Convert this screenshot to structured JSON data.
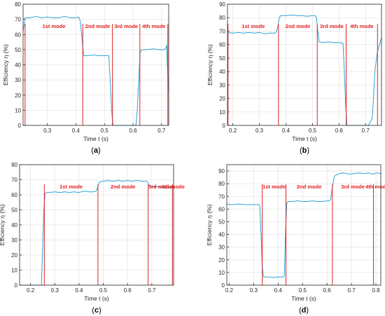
{
  "figure": {
    "label_format": "({label})"
  },
  "colors": {
    "curve": "#2ca3d6",
    "mode_line": "#e02020",
    "mode_text": "#e02020",
    "axis": "#262626",
    "grid": "#e6e6e6"
  },
  "chart_data": [
    {
      "type": "line",
      "panel_label": "a",
      "xlabel": "Time t (s)",
      "ylabel": "Efficiency η (%)",
      "xlim": [
        0.215,
        0.725
      ],
      "ylim": [
        0,
        80
      ],
      "xticks": [
        0.3,
        0.4,
        0.5,
        0.6,
        0.7
      ],
      "yticks": [
        0,
        10,
        20,
        30,
        40,
        50,
        60,
        70,
        80
      ],
      "grid": true,
      "mode_boundaries": [
        0.222,
        0.424,
        0.528,
        0.624,
        0.722
      ],
      "mode_labels": [
        "1st mode",
        "2nd mode",
        "3rd mode",
        "4th mode"
      ],
      "series": [
        {
          "x": [
            0.215,
            0.222,
            0.24,
            0.26,
            0.28,
            0.3,
            0.32,
            0.34,
            0.36,
            0.38,
            0.4,
            0.41,
            0.415,
            0.42,
            0.425,
            0.428,
            0.44,
            0.46,
            0.48,
            0.5,
            0.515,
            0.52,
            0.525,
            0.53,
            0.55,
            0.57,
            0.59,
            0.61,
            0.615,
            0.62,
            0.625,
            0.63,
            0.65,
            0.67,
            0.69,
            0.71,
            0.715,
            0.718,
            0.72,
            0.725
          ],
          "y": [
            62,
            71,
            71,
            72,
            71,
            71.5,
            71,
            71,
            72,
            71,
            71,
            71.5,
            69,
            60,
            50,
            46,
            46,
            46.5,
            46,
            46,
            46,
            30,
            10,
            0,
            0,
            0,
            0,
            0,
            10,
            30,
            48,
            50,
            50,
            50.5,
            50,
            50,
            51,
            53,
            40,
            22
          ]
        }
      ]
    },
    {
      "type": "line",
      "panel_label": "b",
      "xlabel": "Time t (s)",
      "ylabel": "Efficiency η (%)",
      "xlim": [
        0.18,
        0.76
      ],
      "ylim": [
        0,
        90
      ],
      "xticks": [
        0.2,
        0.3,
        0.4,
        0.5,
        0.6,
        0.7
      ],
      "yticks": [
        0,
        10,
        20,
        30,
        40,
        50,
        60,
        70,
        80,
        90
      ],
      "grid": true,
      "mode_boundaries": [
        0.182,
        0.372,
        0.518,
        0.627,
        0.745
      ],
      "mode_labels": [
        "1st mode",
        "2nd mode",
        "3rd mode",
        "4th mode"
      ],
      "series": [
        {
          "x": [
            0.18,
            0.2,
            0.22,
            0.24,
            0.26,
            0.28,
            0.3,
            0.32,
            0.34,
            0.36,
            0.365,
            0.37,
            0.375,
            0.38,
            0.4,
            0.42,
            0.44,
            0.46,
            0.48,
            0.5,
            0.51,
            0.515,
            0.52,
            0.525,
            0.54,
            0.56,
            0.58,
            0.6,
            0.615,
            0.62,
            0.625,
            0.63,
            0.65,
            0.67,
            0.69,
            0.71,
            0.725,
            0.73,
            0.735,
            0.745,
            0.76
          ],
          "y": [
            69,
            68.5,
            69,
            68.5,
            69,
            68.5,
            69,
            68,
            68.5,
            68.5,
            70,
            74,
            80,
            81.5,
            81.5,
            82,
            81.5,
            81.5,
            81,
            81.5,
            81.5,
            80,
            70,
            62,
            61.5,
            62,
            61.5,
            61.5,
            61,
            40,
            15,
            0,
            0,
            0,
            0,
            0,
            5,
            20,
            40,
            55,
            65
          ]
        }
      ]
    },
    {
      "type": "line",
      "panel_label": "c",
      "xlabel": "Time t (s)",
      "ylabel": "Efficiency η (%)",
      "xlim": [
        0.155,
        0.79
      ],
      "ylim": [
        0,
        80
      ],
      "xticks": [
        0.2,
        0.3,
        0.4,
        0.5,
        0.6,
        0.7
      ],
      "yticks": [
        0,
        10,
        20,
        30,
        40,
        50,
        60,
        70,
        80
      ],
      "grid": true,
      "mode_boundaries": [
        0.257,
        0.478,
        0.685,
        0.785
      ],
      "mode_labels": [
        "1st mode",
        "2nd mode",
        "3rd mode",
        "4th mode"
      ],
      "series": [
        {
          "x": [
            0.155,
            0.18,
            0.2,
            0.22,
            0.24,
            0.245,
            0.25,
            0.255,
            0.26,
            0.265,
            0.28,
            0.3,
            0.32,
            0.34,
            0.36,
            0.38,
            0.4,
            0.42,
            0.44,
            0.46,
            0.47,
            0.475,
            0.48,
            0.485,
            0.5,
            0.52,
            0.54,
            0.56,
            0.58,
            0.6,
            0.62,
            0.64,
            0.66,
            0.68,
            0.685,
            0.69,
            0.7,
            0.72,
            0.74,
            0.76,
            0.78,
            0.79
          ],
          "y": [
            0,
            0,
            0,
            0,
            0,
            0,
            25,
            50,
            61,
            61.5,
            61.5,
            62,
            61.5,
            62,
            61.5,
            62,
            61.5,
            62.5,
            62,
            62,
            62.5,
            64,
            67,
            68.5,
            69,
            69.5,
            69,
            69.5,
            69,
            69.5,
            69,
            69.5,
            69,
            69,
            68,
            66,
            65,
            65.5,
            65,
            64.5,
            65,
            66
          ]
        }
      ]
    },
    {
      "type": "line",
      "panel_label": "d",
      "xlabel": "Time t (s)",
      "ylabel": "Efficiency η (%)",
      "xlim": [
        0.19,
        0.82
      ],
      "ylim": [
        0,
        95
      ],
      "xticks": [
        0.2,
        0.3,
        0.4,
        0.5,
        0.6,
        0.7,
        0.8
      ],
      "yticks": [
        0,
        10,
        20,
        30,
        40,
        50,
        60,
        70,
        80,
        90
      ],
      "grid": true,
      "mode_boundaries": [
        0.335,
        0.432,
        0.622,
        0.79
      ],
      "mode_labels": [
        "1st mode",
        "2nd mode",
        "3rd mode",
        "4th mode"
      ],
      "series": [
        {
          "x": [
            0.19,
            0.2,
            0.22,
            0.24,
            0.26,
            0.28,
            0.3,
            0.32,
            0.325,
            0.33,
            0.335,
            0.34,
            0.36,
            0.38,
            0.4,
            0.42,
            0.425,
            0.43,
            0.435,
            0.44,
            0.46,
            0.48,
            0.5,
            0.52,
            0.54,
            0.56,
            0.58,
            0.6,
            0.61,
            0.615,
            0.62,
            0.63,
            0.65,
            0.67,
            0.69,
            0.71,
            0.73,
            0.75,
            0.77,
            0.79,
            0.8,
            0.82
          ],
          "y": [
            64,
            63.5,
            63.5,
            64,
            63.5,
            63.5,
            63.5,
            63.5,
            63,
            40,
            15,
            6.5,
            6.5,
            6,
            6.5,
            6.5,
            7,
            40,
            64,
            66,
            66,
            66.5,
            66,
            66,
            66.5,
            66,
            66,
            66.5,
            66.5,
            68,
            75,
            86,
            88,
            88.5,
            87.5,
            88,
            88.5,
            88,
            88.5,
            87.5,
            88.5,
            88
          ]
        }
      ]
    }
  ]
}
